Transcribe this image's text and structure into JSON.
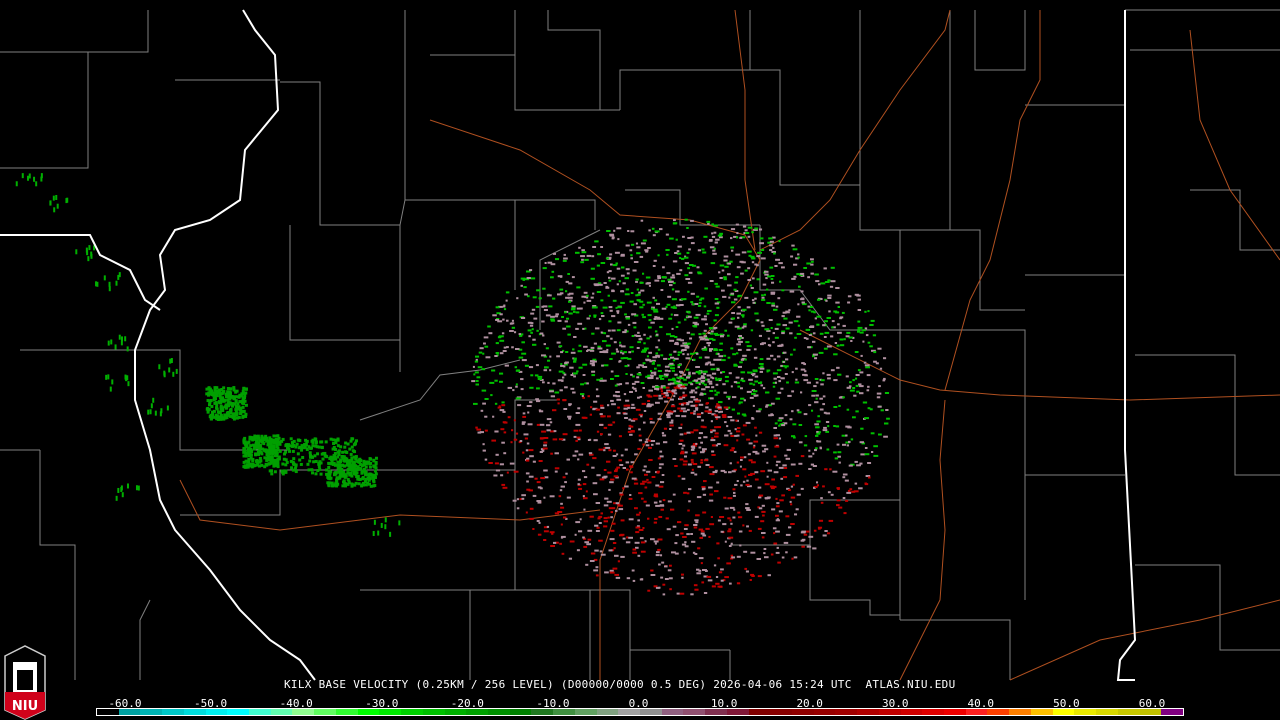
{
  "product": {
    "caption": "KILX BASE VELOCITY (0.25KM / 256 LEVEL) (D00000/0000 0.5 DEG) 2026-04-06 15:24 UTC  ATLAS.NIU.EDU",
    "station": "KILX",
    "field": "BASE VELOCITY",
    "elevation_deg": "0.5",
    "datetime": "2026-04-06 15:24 UTC",
    "source": "ATLAS.NIU.EDU"
  },
  "logo": {
    "text": "NIU",
    "colors": {
      "shield": "#d0021b",
      "outline": "#ffffff"
    }
  },
  "colorbar": {
    "ticks": [
      "-60.0",
      "-50.0",
      "-40.0",
      "-30.0",
      "-20.0",
      "-10.0",
      "0.0",
      "10.0",
      "20.0",
      "30.0",
      "40.0",
      "50.0",
      "60.0"
    ],
    "colors": [
      "#000000",
      "#00a0a0",
      "#00b4b4",
      "#00c8c8",
      "#00dcdc",
      "#00f0f0",
      "#00ffff",
      "#40ffd0",
      "#60ffb0",
      "#90ff90",
      "#60ff60",
      "#30ff30",
      "#00ff00",
      "#00e800",
      "#00d000",
      "#00c000",
      "#00b000",
      "#00a000",
      "#009000",
      "#008000",
      "#207820",
      "#409040",
      "#60a060",
      "#80a080",
      "#a0a0a0",
      "#909090",
      "#906080",
      "#905070",
      "#803050",
      "#801838",
      "#800000",
      "#880000",
      "#900000",
      "#980000",
      "#a00000",
      "#b00000",
      "#c00000",
      "#d00000",
      "#e00000",
      "#f00000",
      "#ff2020",
      "#ff4000",
      "#ff8000",
      "#ffc000",
      "#ffff00",
      "#e8e800",
      "#d8d800",
      "#c8c800",
      "#c0c000",
      "#800080"
    ]
  },
  "map_colors": {
    "county": "#808080",
    "state": "#ffffff",
    "road": "#b05020",
    "outbound": "#c00000",
    "inbound": "#00c000",
    "nearzero": "#b090a0"
  }
}
